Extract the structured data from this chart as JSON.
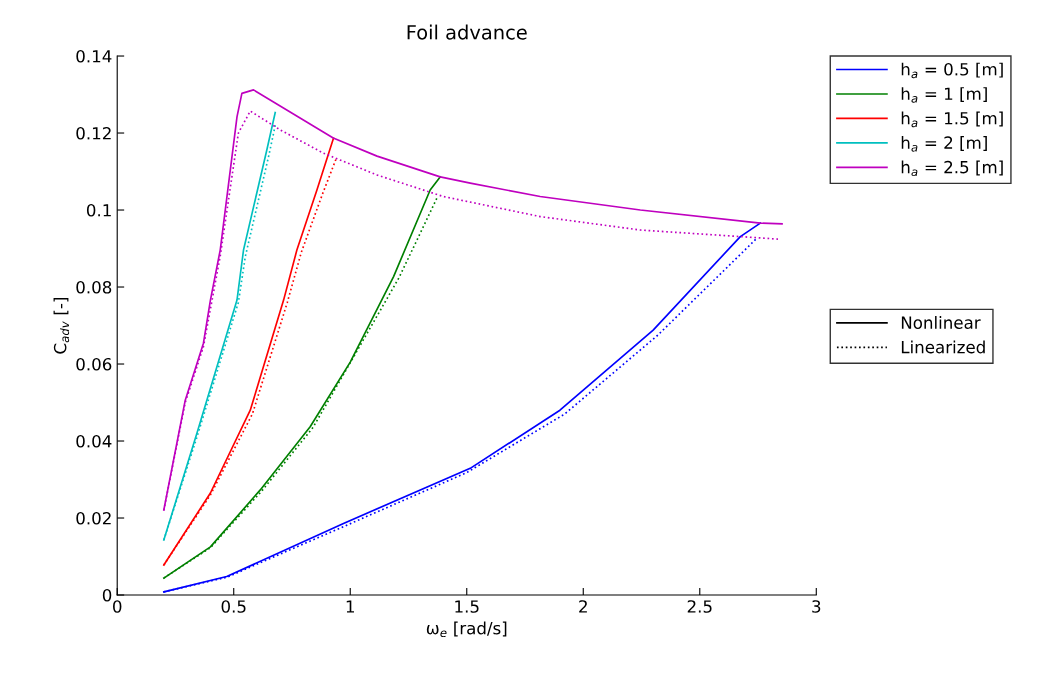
{
  "chart_data": {
    "type": "line",
    "title": "Foil advance",
    "xlabel": "ω$_{e}$ [rad/s]",
    "ylabel": "C$_{adv}$ [-]",
    "xlim": [
      0,
      3
    ],
    "xticks": [
      0,
      0.5,
      1,
      1.5,
      2,
      2.5,
      3
    ],
    "ylim": [
      0,
      0.14
    ],
    "yticks": [
      0,
      0.02,
      0.04,
      0.06,
      0.08,
      0.1,
      0.12,
      0.14
    ],
    "grid": false,
    "legend": "right",
    "marker": "none",
    "series": [
      {
        "name": "h$_{a}$ = 0.5 [m]",
        "color": "#0000ff",
        "line_style": "solid",
        "x": [
          0.2,
          0.47,
          0.971,
          1.515,
          1.9,
          2.3,
          2.674,
          2.76
        ],
        "values": [
          0.0008,
          0.0048,
          0.0186,
          0.0329,
          0.048,
          0.0688,
          0.0931,
          0.0966
        ]
      },
      {
        "name": "h$_{a}$ = 1 [m]",
        "color": "#008000",
        "line_style": "solid",
        "x": [
          0.2,
          0.4,
          0.614,
          0.828,
          1.0,
          1.186,
          1.343,
          1.386
        ],
        "values": [
          0.0044,
          0.0125,
          0.0273,
          0.0437,
          0.0605,
          0.0827,
          0.1052,
          0.1086
        ]
      },
      {
        "name": "h$_{a}$ = 1.5 [m]",
        "color": "#ff0000",
        "line_style": "solid",
        "x": [
          0.2,
          0.4,
          0.571,
          0.714,
          0.771,
          0.857,
          0.928
        ],
        "values": [
          0.0078,
          0.0265,
          0.048,
          0.0766,
          0.0896,
          0.1052,
          0.1186
        ]
      },
      {
        "name": "h$_{a}$ = 2 [m]",
        "color": "#00bfbf",
        "line_style": "solid",
        "x": [
          0.2,
          0.342,
          0.514,
          0.542,
          0.642,
          0.678
        ],
        "values": [
          0.0143,
          0.042,
          0.0766,
          0.0896,
          0.1156,
          0.1253
        ]
      },
      {
        "name": "h$_{a}$ = 2.5 [m]",
        "color": "#bf00bf",
        "line_style": "solid",
        "x": [
          0.2,
          0.292,
          0.37,
          0.4,
          0.442,
          0.514,
          0.535,
          0.585,
          0.927,
          1.115,
          1.386,
          1.515,
          1.815,
          2.245,
          2.76,
          2.853
        ],
        "values": [
          0.0221,
          0.0506,
          0.0654,
          0.0766,
          0.0896,
          0.1242,
          0.1303,
          0.1312,
          0.1187,
          0.114,
          0.1086,
          0.107,
          0.1035,
          0.1,
          0.0966,
          0.0964
        ]
      },
      {
        "color": "#0000ff",
        "line_style": "dotted",
        "x": [
          0.2,
          0.47,
          0.98,
          1.5,
          1.92,
          2.32,
          2.7,
          2.745
        ],
        "values": [
          0.0008,
          0.0046,
          0.018,
          0.0318,
          0.047,
          0.0675,
          0.09,
          0.0927
        ]
      },
      {
        "color": "#008000",
        "line_style": "dotted",
        "x": [
          0.2,
          0.4,
          0.62,
          0.84,
          1.03,
          1.21,
          1.372
        ],
        "values": [
          0.0044,
          0.0123,
          0.027,
          0.0435,
          0.0635,
          0.0825,
          0.1031
        ]
      },
      {
        "color": "#ff0000",
        "line_style": "dotted",
        "x": [
          0.2,
          0.4,
          0.58,
          0.73,
          0.79,
          0.88,
          0.94
        ],
        "values": [
          0.0078,
          0.026,
          0.047,
          0.076,
          0.089,
          0.104,
          0.1134
        ]
      },
      {
        "color": "#00bfbf",
        "line_style": "dotted",
        "x": [
          0.2,
          0.342,
          0.52,
          0.55,
          0.65,
          0.68
        ],
        "values": [
          0.0143,
          0.041,
          0.076,
          0.088,
          0.114,
          0.1225
        ]
      },
      {
        "color": "#bf00bf",
        "line_style": "dotted",
        "x": [
          0.2,
          0.292,
          0.37,
          0.442,
          0.52,
          0.571,
          0.7,
          0.884,
          0.94,
          1.115,
          1.4,
          1.815,
          2.245,
          2.674,
          2.845
        ],
        "values": [
          0.022,
          0.05,
          0.0645,
          0.088,
          0.12,
          0.1257,
          0.1208,
          0.1148,
          0.1134,
          0.1091,
          0.1035,
          0.0983,
          0.0948,
          0.0931,
          0.0924
        ]
      },
      {
        "name": "Nonlinear",
        "color": "#000000",
        "line_style": "solid"
      },
      {
        "name": "Linearized",
        "color": "#000000",
        "line_style": "dotted"
      }
    ]
  }
}
